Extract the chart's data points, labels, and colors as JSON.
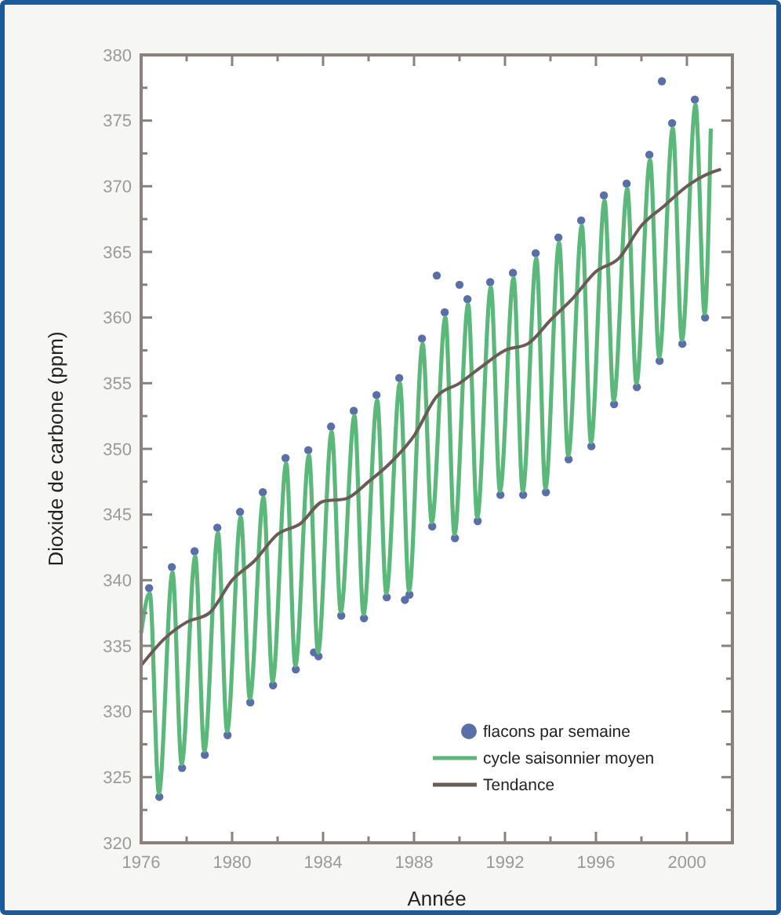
{
  "chart_data": {
    "type": "line",
    "xlabel": "Année",
    "ylabel": "Dioxide de carbone (ppm)",
    "xlim": [
      1976,
      2002
    ],
    "ylim": [
      320,
      380
    ],
    "xticks": [
      1976,
      {
        "value": 1978,
        "label": null
      },
      1980,
      {
        "value": 1982,
        "label": null
      },
      1984,
      {
        "value": 1986,
        "label": null
      },
      1988,
      {
        "value": 1990,
        "label": null
      },
      1992,
      {
        "value": 1994,
        "label": null
      },
      1996,
      {
        "value": 1998,
        "label": null
      },
      2000,
      {
        "value": 2002,
        "label": null
      }
    ],
    "yticks": [
      320,
      {
        "value": 322.5,
        "label": null
      },
      325,
      {
        "value": 327.5,
        "label": null
      },
      330,
      {
        "value": 332.5,
        "label": null
      },
      335,
      {
        "value": 337.5,
        "label": null
      },
      340,
      {
        "value": 342.5,
        "label": null
      },
      345,
      {
        "value": 347.5,
        "label": null
      },
      350,
      {
        "value": 352.5,
        "label": null
      },
      355,
      {
        "value": 357.5,
        "label": null
      },
      360,
      {
        "value": 362.5,
        "label": null
      },
      365,
      {
        "value": 367.5,
        "label": null
      },
      370,
      {
        "value": 372.5,
        "label": null
      },
      375,
      {
        "value": 377.5,
        "label": null
      },
      380
    ],
    "grid": false,
    "legend": "bottom right",
    "series": [
      {
        "name": "flacons par semaine",
        "type": "scatter",
        "marker": "circle",
        "color": "#5a6fa8",
        "x": [
          1976.35,
          1976.8,
          1977.35,
          1977.8,
          1978.35,
          1978.8,
          1979.35,
          1979.8,
          1980.35,
          1980.8,
          1981.35,
          1981.8,
          1982.35,
          1982.8,
          1983.35,
          1983.6,
          1983.8,
          1984.35,
          1984.8,
          1985.35,
          1985.8,
          1986.35,
          1986.8,
          1987.35,
          1987.6,
          1987.8,
          1988.35,
          1988.8,
          1989.0,
          1989.35,
          1989.8,
          1990.0,
          1990.35,
          1990.8,
          1991.35,
          1991.8,
          1992.35,
          1992.8,
          1993.35,
          1993.8,
          1994.35,
          1994.8,
          1995.35,
          1995.8,
          1996.35,
          1996.8,
          1997.35,
          1997.8,
          1998.35,
          1998.8,
          1998.9,
          1999.35,
          1999.8,
          2000.35,
          2000.8
        ],
        "values": [
          339.4,
          323.5,
          341,
          325.7,
          342.2,
          326.7,
          344,
          328.2,
          345.2,
          330.7,
          346.7,
          332,
          349.3,
          333.2,
          349.9,
          334.5,
          334.2,
          351.7,
          337.3,
          352.9,
          337.1,
          354.1,
          338.7,
          355.4,
          338.5,
          338.9,
          358.4,
          344.1,
          363.2,
          360.4,
          343.2,
          362.5,
          361.4,
          344.5,
          362.7,
          346.5,
          363.4,
          346.5,
          364.9,
          346.7,
          366.1,
          349.2,
          367.4,
          350.2,
          369.3,
          353.4,
          370.2,
          354.7,
          372.4,
          356.7,
          378,
          374.8,
          358,
          376.6,
          360
        ]
      },
      {
        "name": "cycle saisonnier moyen",
        "color": "#5cb87a",
        "x": [
          1976.0,
          1976.38,
          1976.78,
          1977.38,
          1977.78,
          1978.38,
          1978.78,
          1979.38,
          1979.78,
          1980.38,
          1980.78,
          1981.38,
          1981.78,
          1982.38,
          1982.78,
          1983.38,
          1983.78,
          1984.38,
          1984.78,
          1985.38,
          1985.78,
          1986.38,
          1986.78,
          1987.38,
          1987.78,
          1988.38,
          1988.78,
          1989.38,
          1989.78,
          1990.38,
          1990.78,
          1991.38,
          1991.78,
          1992.38,
          1992.78,
          1993.38,
          1993.78,
          1994.38,
          1994.78,
          1995.38,
          1995.78,
          1996.38,
          1996.78,
          1997.38,
          1997.78,
          1998.38,
          1998.78,
          1999.38,
          1999.78,
          2000.38,
          2000.78,
          2001.05
        ],
        "values": [
          336,
          339,
          323.8,
          340.6,
          326,
          341.8,
          327,
          343.6,
          328.5,
          344.8,
          331,
          346.3,
          332.3,
          348.9,
          333.5,
          349.5,
          334.5,
          351.3,
          337.6,
          352.5,
          337.4,
          353.7,
          339,
          355,
          339.2,
          358,
          344.4,
          360,
          343.5,
          361,
          344.8,
          362.3,
          346.8,
          363,
          346.8,
          364.5,
          347,
          365.7,
          349.5,
          367,
          350.5,
          368.9,
          353.7,
          369.8,
          355,
          372,
          357,
          374.4,
          358.3,
          376.2,
          360.3,
          374.4
        ]
      },
      {
        "name": "Tendance",
        "color": "#6b5a55",
        "x": [
          1976,
          1977,
          1978,
          1979,
          1980,
          1981,
          1982,
          1983,
          1984,
          1985,
          1986,
          1987,
          1988,
          1989,
          1990,
          1991,
          1992,
          1993,
          1994,
          1995,
          1996,
          1997,
          1998,
          1999,
          2000,
          2001,
          2001.5
        ],
        "values": [
          333.5,
          335.5,
          336.8,
          337.5,
          340,
          341.5,
          343.5,
          344.3,
          346,
          346.2,
          347.5,
          349,
          351,
          354,
          355,
          356.3,
          357.5,
          358,
          359.8,
          361.5,
          363.5,
          364.5,
          367,
          368.5,
          370,
          371,
          371.3
        ]
      }
    ]
  }
}
